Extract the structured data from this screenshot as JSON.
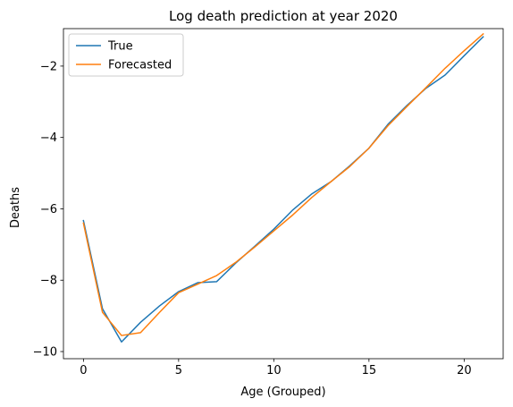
{
  "chart_data": {
    "type": "line",
    "title": "Log death prediction at year 2020",
    "xlabel": "Age (Grouped)",
    "ylabel": "Deaths",
    "xlim": [
      -1.05,
      22.05
    ],
    "ylim": [
      -10.2,
      -0.95
    ],
    "xticks": [
      0,
      5,
      10,
      15,
      20
    ],
    "xtick_labels": [
      "0",
      "5",
      "10",
      "15",
      "20"
    ],
    "yticks": [
      -10,
      -8,
      -6,
      -4,
      -2
    ],
    "ytick_labels": [
      "−10",
      "−8",
      "−6",
      "−4",
      "−2"
    ],
    "grid": false,
    "legend_position": "top-left",
    "x": [
      0,
      1,
      2,
      3,
      4,
      5,
      6,
      7,
      8,
      9,
      10,
      11,
      12,
      13,
      14,
      15,
      16,
      17,
      18,
      19,
      20,
      21
    ],
    "series": [
      {
        "name": "True",
        "color": "#1f77b4",
        "values": [
          -6.33,
          -8.8,
          -9.73,
          -9.18,
          -8.72,
          -8.32,
          -8.07,
          -8.04,
          -7.52,
          -7.05,
          -6.57,
          -6.03,
          -5.58,
          -5.24,
          -4.79,
          -4.3,
          -3.63,
          -3.1,
          -2.62,
          -2.25,
          -1.71,
          -1.18
        ]
      },
      {
        "name": "Forecasted",
        "color": "#ff7f0e",
        "values": [
          -6.4,
          -8.9,
          -9.55,
          -9.47,
          -8.9,
          -8.35,
          -8.11,
          -7.87,
          -7.5,
          -7.07,
          -6.62,
          -6.17,
          -5.68,
          -5.24,
          -4.81,
          -4.3,
          -3.67,
          -3.13,
          -2.6,
          -2.06,
          -1.57,
          -1.1
        ]
      }
    ]
  }
}
